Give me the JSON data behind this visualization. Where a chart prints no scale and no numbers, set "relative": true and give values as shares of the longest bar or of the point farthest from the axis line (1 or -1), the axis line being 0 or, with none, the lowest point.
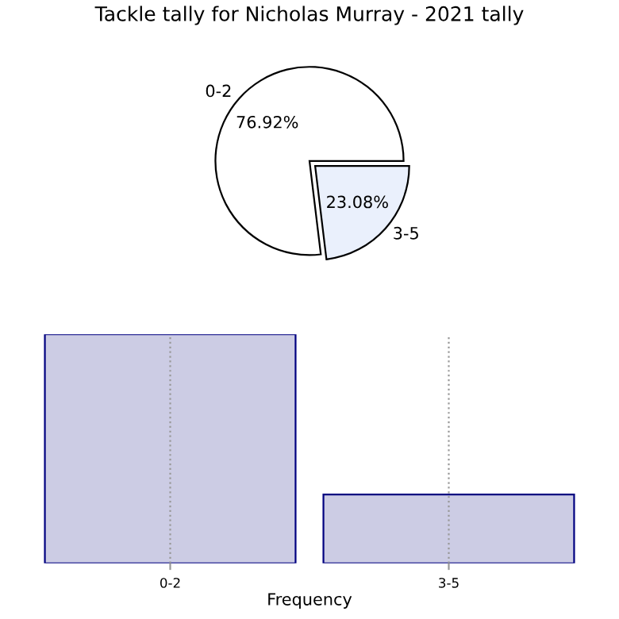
{
  "chart_data": [
    {
      "type": "pie",
      "title": "Tackle tally for Nicholas Murray - 2021 tally",
      "categories": [
        "0-2",
        "3-5"
      ],
      "values": [
        76.92,
        23.08
      ],
      "colors": [
        "#ffffff",
        "#eaf0fc"
      ],
      "value_labels": [
        "76.92%",
        "23.08%"
      ],
      "legend": false
    },
    {
      "type": "bar",
      "xlabel": "Frequency",
      "categories": [
        "0-2",
        "3-5"
      ],
      "values": [
        1,
        0.3
      ],
      "color": "#ccccE4",
      "relative": true,
      "grid": "x",
      "tick_labels": "x",
      "legend": false
    }
  ]
}
